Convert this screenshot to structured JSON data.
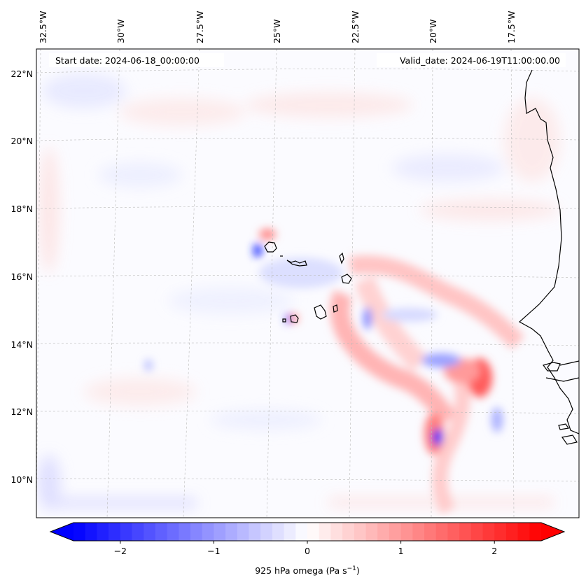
{
  "map": {
    "start_date_label": "Start date: 2024-06-18_00:00:00",
    "valid_date_label": "Valid_date: 2024-06-19T11:00:00.00",
    "lon_labels": [
      "32.5°W",
      "30°W",
      "27.5°W",
      "25°W",
      "22.5°W",
      "20°W",
      "17.5°W"
    ],
    "lat_labels": [
      "22°N",
      "20°N",
      "18°N",
      "16°N",
      "14°N",
      "12°N",
      "10°N"
    ],
    "lon_range": [
      -32.8,
      -15.9
    ],
    "lat_range": [
      8.9,
      22.8
    ],
    "variable": "925 hPa omega"
  },
  "colorbar": {
    "label_prefix": "925 hPa omega (Pa s",
    "label_sup": "−1",
    "label_suffix": ")",
    "ticks": [
      "−2",
      "−1",
      "0",
      "1",
      "2"
    ],
    "tick_values": [
      -2,
      -1,
      0,
      1,
      2
    ],
    "range": [
      -2.5,
      2.5
    ],
    "colors": {
      "negative": "#0000ff",
      "zero": "#ffffff",
      "positive": "#ff0000"
    }
  }
}
